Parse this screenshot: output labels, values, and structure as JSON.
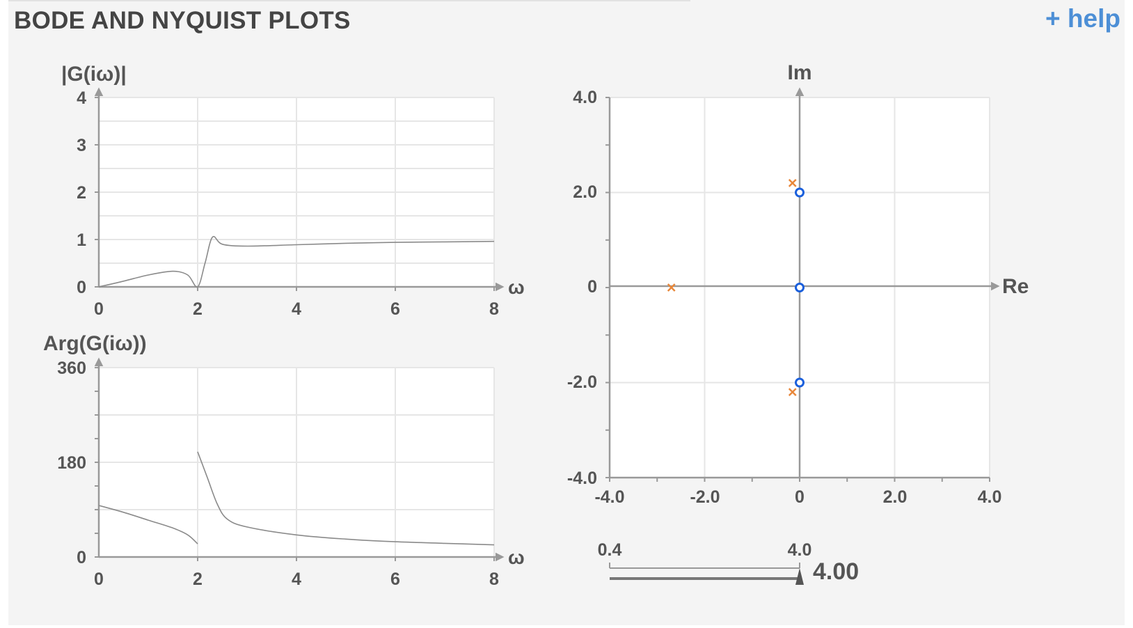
{
  "header": {
    "title": "BODE AND NYQUIST PLOTS",
    "help_label": "+ help"
  },
  "magnitude_plot": {
    "ylabel": "|G(iω)|",
    "xlabel": "ω",
    "x_ticks": [
      "0",
      "2",
      "4",
      "6",
      "8"
    ],
    "y_ticks": [
      "0",
      "1",
      "2",
      "3",
      "4"
    ]
  },
  "phase_plot": {
    "ylabel": "Arg(G(iω))",
    "xlabel": "ω",
    "x_ticks": [
      "0",
      "2",
      "4",
      "6",
      "8"
    ],
    "y_ticks": [
      "0",
      "180",
      "360"
    ]
  },
  "pole_zero_plot": {
    "xlabel": "Re",
    "ylabel": "Im",
    "x_ticks": [
      "-4.0",
      "-2.0",
      "0",
      "2.0",
      "4.0"
    ],
    "y_ticks": [
      "-4.0",
      "-2.0",
      "0",
      "2.0",
      "4.0"
    ]
  },
  "slider": {
    "min_label": "0.4",
    "max_label": "4.0",
    "value": 4.0,
    "value_label": "4.00"
  },
  "colors": {
    "pole": "#e8873a",
    "zero": "#1a5fdc",
    "help_link": "#4d8fd6"
  },
  "chart_data": [
    {
      "type": "line",
      "title": "",
      "xlabel": "ω",
      "ylabel": "|G(iω)|",
      "xlim": [
        0,
        8
      ],
      "ylim": [
        0,
        4
      ],
      "x": [
        0,
        0.5,
        1.0,
        1.5,
        1.8,
        2.0,
        2.15,
        2.3,
        2.5,
        3.0,
        4.0,
        5.0,
        6.0,
        7.0,
        8.0
      ],
      "y": [
        0,
        0.12,
        0.25,
        0.33,
        0.25,
        0.0,
        0.5,
        1.05,
        0.9,
        0.86,
        0.89,
        0.92,
        0.94,
        0.95,
        0.96
      ]
    },
    {
      "type": "line",
      "title": "",
      "xlabel": "ω",
      "ylabel": "Arg(G(iω))",
      "xlim": [
        0,
        8
      ],
      "ylim": [
        0,
        360
      ],
      "segments": [
        {
          "x": [
            0,
            0.5,
            1.0,
            1.5,
            1.8,
            2.0
          ],
          "y": [
            98,
            85,
            70,
            55,
            42,
            25
          ]
        },
        {
          "x": [
            2.0,
            2.2,
            2.4,
            2.6,
            3.0,
            4.0,
            5.0,
            6.0,
            7.0,
            8.0
          ],
          "y": [
            200,
            150,
            100,
            72,
            57,
            42,
            34,
            29,
            26,
            23
          ]
        }
      ]
    },
    {
      "type": "scatter",
      "title": "",
      "xlabel": "Re",
      "ylabel": "Im",
      "xlim": [
        -4,
        4
      ],
      "ylim": [
        -4,
        4
      ],
      "poles": [
        {
          "re": -2.7,
          "im": 0
        },
        {
          "re": -0.15,
          "im": 2.2
        },
        {
          "re": -0.15,
          "im": -2.2
        }
      ],
      "zeros": [
        {
          "re": 0,
          "im": 2.0
        },
        {
          "re": 0,
          "im": 0
        },
        {
          "re": 0,
          "im": -2.0
        }
      ]
    }
  ]
}
